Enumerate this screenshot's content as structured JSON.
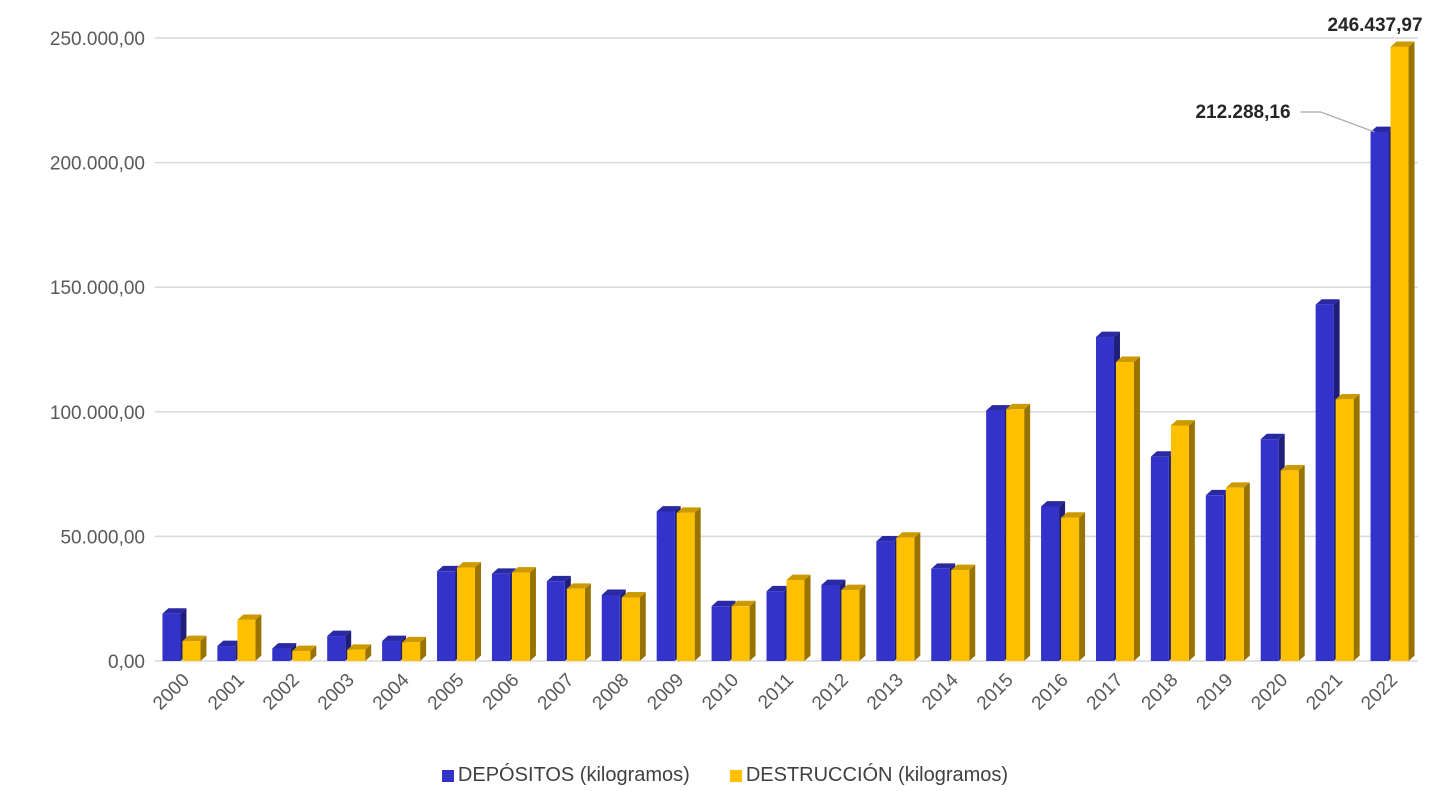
{
  "chart_data": {
    "type": "bar",
    "categories": [
      "2000",
      "2001",
      "2002",
      "2003",
      "2004",
      "2005",
      "2006",
      "2007",
      "2008",
      "2009",
      "2010",
      "2011",
      "2012",
      "2013",
      "2014",
      "2015",
      "2016",
      "2017",
      "2018",
      "2019",
      "2020",
      "2021",
      "2022"
    ],
    "series": [
      {
        "name": "DEPÓSITOS (kilogramos)",
        "color": "#3333CC",
        "values": [
          19000,
          6000,
          5000,
          10000,
          8000,
          36000,
          35000,
          32000,
          26500,
          60000,
          22000,
          28000,
          30500,
          48000,
          37000,
          100500,
          62000,
          130000,
          82000,
          66500,
          89000,
          143000,
          212288.16
        ]
      },
      {
        "name": "DESTRUCCIÓN (kilogramos)",
        "color": "#FFC000",
        "values": [
          8000,
          16500,
          4000,
          4500,
          7500,
          37500,
          35500,
          29000,
          25500,
          59500,
          22000,
          32500,
          28500,
          49500,
          36500,
          101000,
          57500,
          120000,
          94500,
          69500,
          76500,
          105000,
          246437.97
        ]
      }
    ],
    "y_ticks": [
      "0,00",
      "50.000,00",
      "100.000,00",
      "150.000,00",
      "200.000,00",
      "250.000,00"
    ],
    "ylim": [
      0,
      250000
    ],
    "grid": true,
    "legend_position": "bottom",
    "annotations": [
      {
        "text": "212.288,16",
        "series": 0,
        "category": "2022"
      },
      {
        "text": "246.437,97",
        "series": 1,
        "category": "2022"
      }
    ]
  }
}
